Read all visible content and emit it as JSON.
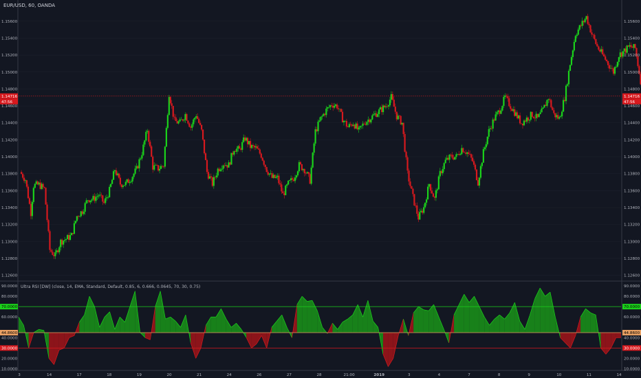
{
  "header": {
    "symbol": "EUR/USD, 60, OANDA"
  },
  "indicator": {
    "title": "Ultra RSI [DW] (close, 14, EMA, Standard, Default, 0.85, 6, 0.666, 0.0645, 70, 30, 0.75)"
  },
  "price_panel": {
    "last_price": "1.14716",
    "countdown": "47:56",
    "y_ticks": [
      "1.12600",
      "1.12800",
      "1.13000",
      "1.13200",
      "1.13400",
      "1.13600",
      "1.13800",
      "1.14000",
      "1.14200",
      "1.14400",
      "1.14600",
      "1.14800",
      "1.15000",
      "1.15200",
      "1.15400",
      "1.15600"
    ]
  },
  "rsi_panel": {
    "y_ticks": [
      "10.0000",
      "20.0000",
      "40.0000",
      "60.0000",
      "80.0000",
      "90.0000"
    ],
    "overbought": "70.0000",
    "oversold": "30.0000",
    "midline": "44.8600"
  },
  "time_axis": [
    "3",
    "14",
    "17",
    "18",
    "19",
    "20",
    "21",
    "24",
    "26",
    "27",
    "28",
    "21:00",
    "2019",
    "3",
    "4",
    "7",
    "8",
    "9",
    "10",
    "11",
    "14"
  ],
  "colors": {
    "up": "#1bd21b",
    "down": "#d7191e",
    "background": "#131722",
    "grid": "#2a2e39"
  },
  "chart_data": [
    {
      "type": "candlestick",
      "title": "EUR/USD, 60, OANDA",
      "ylim": [
        1.1254,
        1.1585
      ],
      "close_path": [
        [
          0,
          1.1382
        ],
        [
          4,
          1.1373
        ],
        [
          8,
          1.1334
        ],
        [
          10,
          1.1366
        ],
        [
          14,
          1.1367
        ],
        [
          18,
          1.1362
        ],
        [
          22,
          1.129
        ],
        [
          26,
          1.1283
        ],
        [
          30,
          1.13
        ],
        [
          34,
          1.1303
        ],
        [
          38,
          1.1307
        ],
        [
          42,
          1.133
        ],
        [
          46,
          1.1336
        ],
        [
          50,
          1.135
        ],
        [
          54,
          1.135
        ],
        [
          58,
          1.1355
        ],
        [
          62,
          1.1345
        ],
        [
          66,
          1.136
        ],
        [
          70,
          1.1385
        ],
        [
          74,
          1.1368
        ],
        [
          78,
          1.1368
        ],
        [
          82,
          1.1375
        ],
        [
          86,
          1.1385
        ],
        [
          90,
          1.1405
        ],
        [
          94,
          1.1432
        ],
        [
          98,
          1.1388
        ],
        [
          102,
          1.1386
        ],
        [
          106,
          1.139
        ],
        [
          110,
          1.1475
        ],
        [
          114,
          1.1442
        ],
        [
          118,
          1.144
        ],
        [
          122,
          1.145
        ],
        [
          126,
          1.1435
        ],
        [
          130,
          1.145
        ],
        [
          134,
          1.143
        ],
        [
          138,
          1.1382
        ],
        [
          142,
          1.1368
        ],
        [
          146,
          1.1385
        ],
        [
          150,
          1.1392
        ],
        [
          154,
          1.139
        ],
        [
          158,
          1.141
        ],
        [
          162,
          1.1408
        ],
        [
          166,
          1.1422
        ],
        [
          170,
          1.1412
        ],
        [
          174,
          1.141
        ],
        [
          178,
          1.1402
        ],
        [
          182,
          1.1385
        ],
        [
          186,
          1.1375
        ],
        [
          190,
          1.1375
        ],
        [
          194,
          1.1355
        ],
        [
          198,
          1.1368
        ],
        [
          202,
          1.1375
        ],
        [
          206,
          1.139
        ],
        [
          210,
          1.1385
        ],
        [
          214,
          1.1372
        ],
        [
          218,
          1.143
        ],
        [
          222,
          1.1445
        ],
        [
          226,
          1.1455
        ],
        [
          230,
          1.1462
        ],
        [
          234,
          1.146
        ],
        [
          238,
          1.1445
        ],
        [
          242,
          1.1435
        ],
        [
          246,
          1.144
        ],
        [
          250,
          1.143
        ],
        [
          254,
          1.144
        ],
        [
          258,
          1.1445
        ],
        [
          262,
          1.145
        ],
        [
          266,
          1.1455
        ],
        [
          270,
          1.146
        ],
        [
          274,
          1.147
        ],
        [
          278,
          1.1448
        ],
        [
          282,
          1.144
        ],
        [
          286,
          1.138
        ],
        [
          290,
          1.1352
        ],
        [
          294,
          1.1328
        ],
        [
          298,
          1.134
        ],
        [
          302,
          1.1368
        ],
        [
          306,
          1.135
        ],
        [
          310,
          1.138
        ],
        [
          314,
          1.1395
        ],
        [
          318,
          1.14
        ],
        [
          322,
          1.14
        ],
        [
          326,
          1.141
        ],
        [
          330,
          1.1405
        ],
        [
          334,
          1.1395
        ],
        [
          338,
          1.137
        ],
        [
          342,
          1.1405
        ],
        [
          346,
          1.143
        ],
        [
          350,
          1.1445
        ],
        [
          354,
          1.1455
        ],
        [
          358,
          1.147
        ],
        [
          362,
          1.146
        ],
        [
          366,
          1.145
        ],
        [
          370,
          1.144
        ],
        [
          374,
          1.1445
        ],
        [
          378,
          1.145
        ],
        [
          382,
          1.1445
        ],
        [
          386,
          1.1455
        ],
        [
          390,
          1.147
        ],
        [
          394,
          1.145
        ],
        [
          398,
          1.1445
        ],
        [
          402,
          1.147
        ],
        [
          406,
          1.151
        ],
        [
          410,
          1.1545
        ],
        [
          414,
          1.1555
        ],
        [
          418,
          1.1565
        ],
        [
          422,
          1.1545
        ],
        [
          426,
          1.153
        ],
        [
          430,
          1.152
        ],
        [
          434,
          1.151
        ],
        [
          438,
          1.15
        ],
        [
          442,
          1.152
        ],
        [
          446,
          1.1525
        ],
        [
          450,
          1.153
        ],
        [
          454,
          1.1528
        ],
        [
          458,
          1.149
        ],
        [
          462,
          1.147
        ],
        [
          466,
          1.1462
        ],
        [
          470,
          1.1465
        ]
      ]
    },
    {
      "type": "area",
      "title": "Ultra RSI [DW] (close, 14, EMA, Standard, Default, 0.85, 6, 0.666, 0.0645, 70, 30, 0.75)",
      "ylim": [
        9,
        94
      ],
      "levels": {
        "overbought": 70,
        "oversold": 30,
        "midline": 44.86
      },
      "values": [
        60,
        52,
        30,
        45,
        48,
        47,
        20,
        14,
        28,
        30,
        40,
        42,
        55,
        62,
        80,
        70,
        50,
        60,
        65,
        48,
        60,
        55,
        70,
        85,
        45,
        40,
        38,
        70,
        85,
        58,
        60,
        56,
        50,
        62,
        35,
        20,
        30,
        52,
        60,
        60,
        68,
        58,
        50,
        54,
        48,
        40,
        30,
        34,
        42,
        30,
        50,
        56,
        62,
        50,
        40,
        72,
        80,
        75,
        76,
        66,
        50,
        44,
        54,
        48,
        55,
        58,
        62,
        72,
        60,
        76,
        56,
        50,
        24,
        12,
        20,
        42,
        58,
        42,
        64,
        70,
        67,
        66,
        72,
        60,
        48,
        35,
        62,
        72,
        82,
        74,
        80,
        70,
        60,
        52,
        58,
        62,
        58,
        64,
        74,
        56,
        48,
        62,
        78,
        88,
        80,
        84,
        60,
        40,
        35,
        30,
        42,
        60,
        68,
        64,
        62,
        30,
        24,
        30,
        40
      ]
    }
  ]
}
